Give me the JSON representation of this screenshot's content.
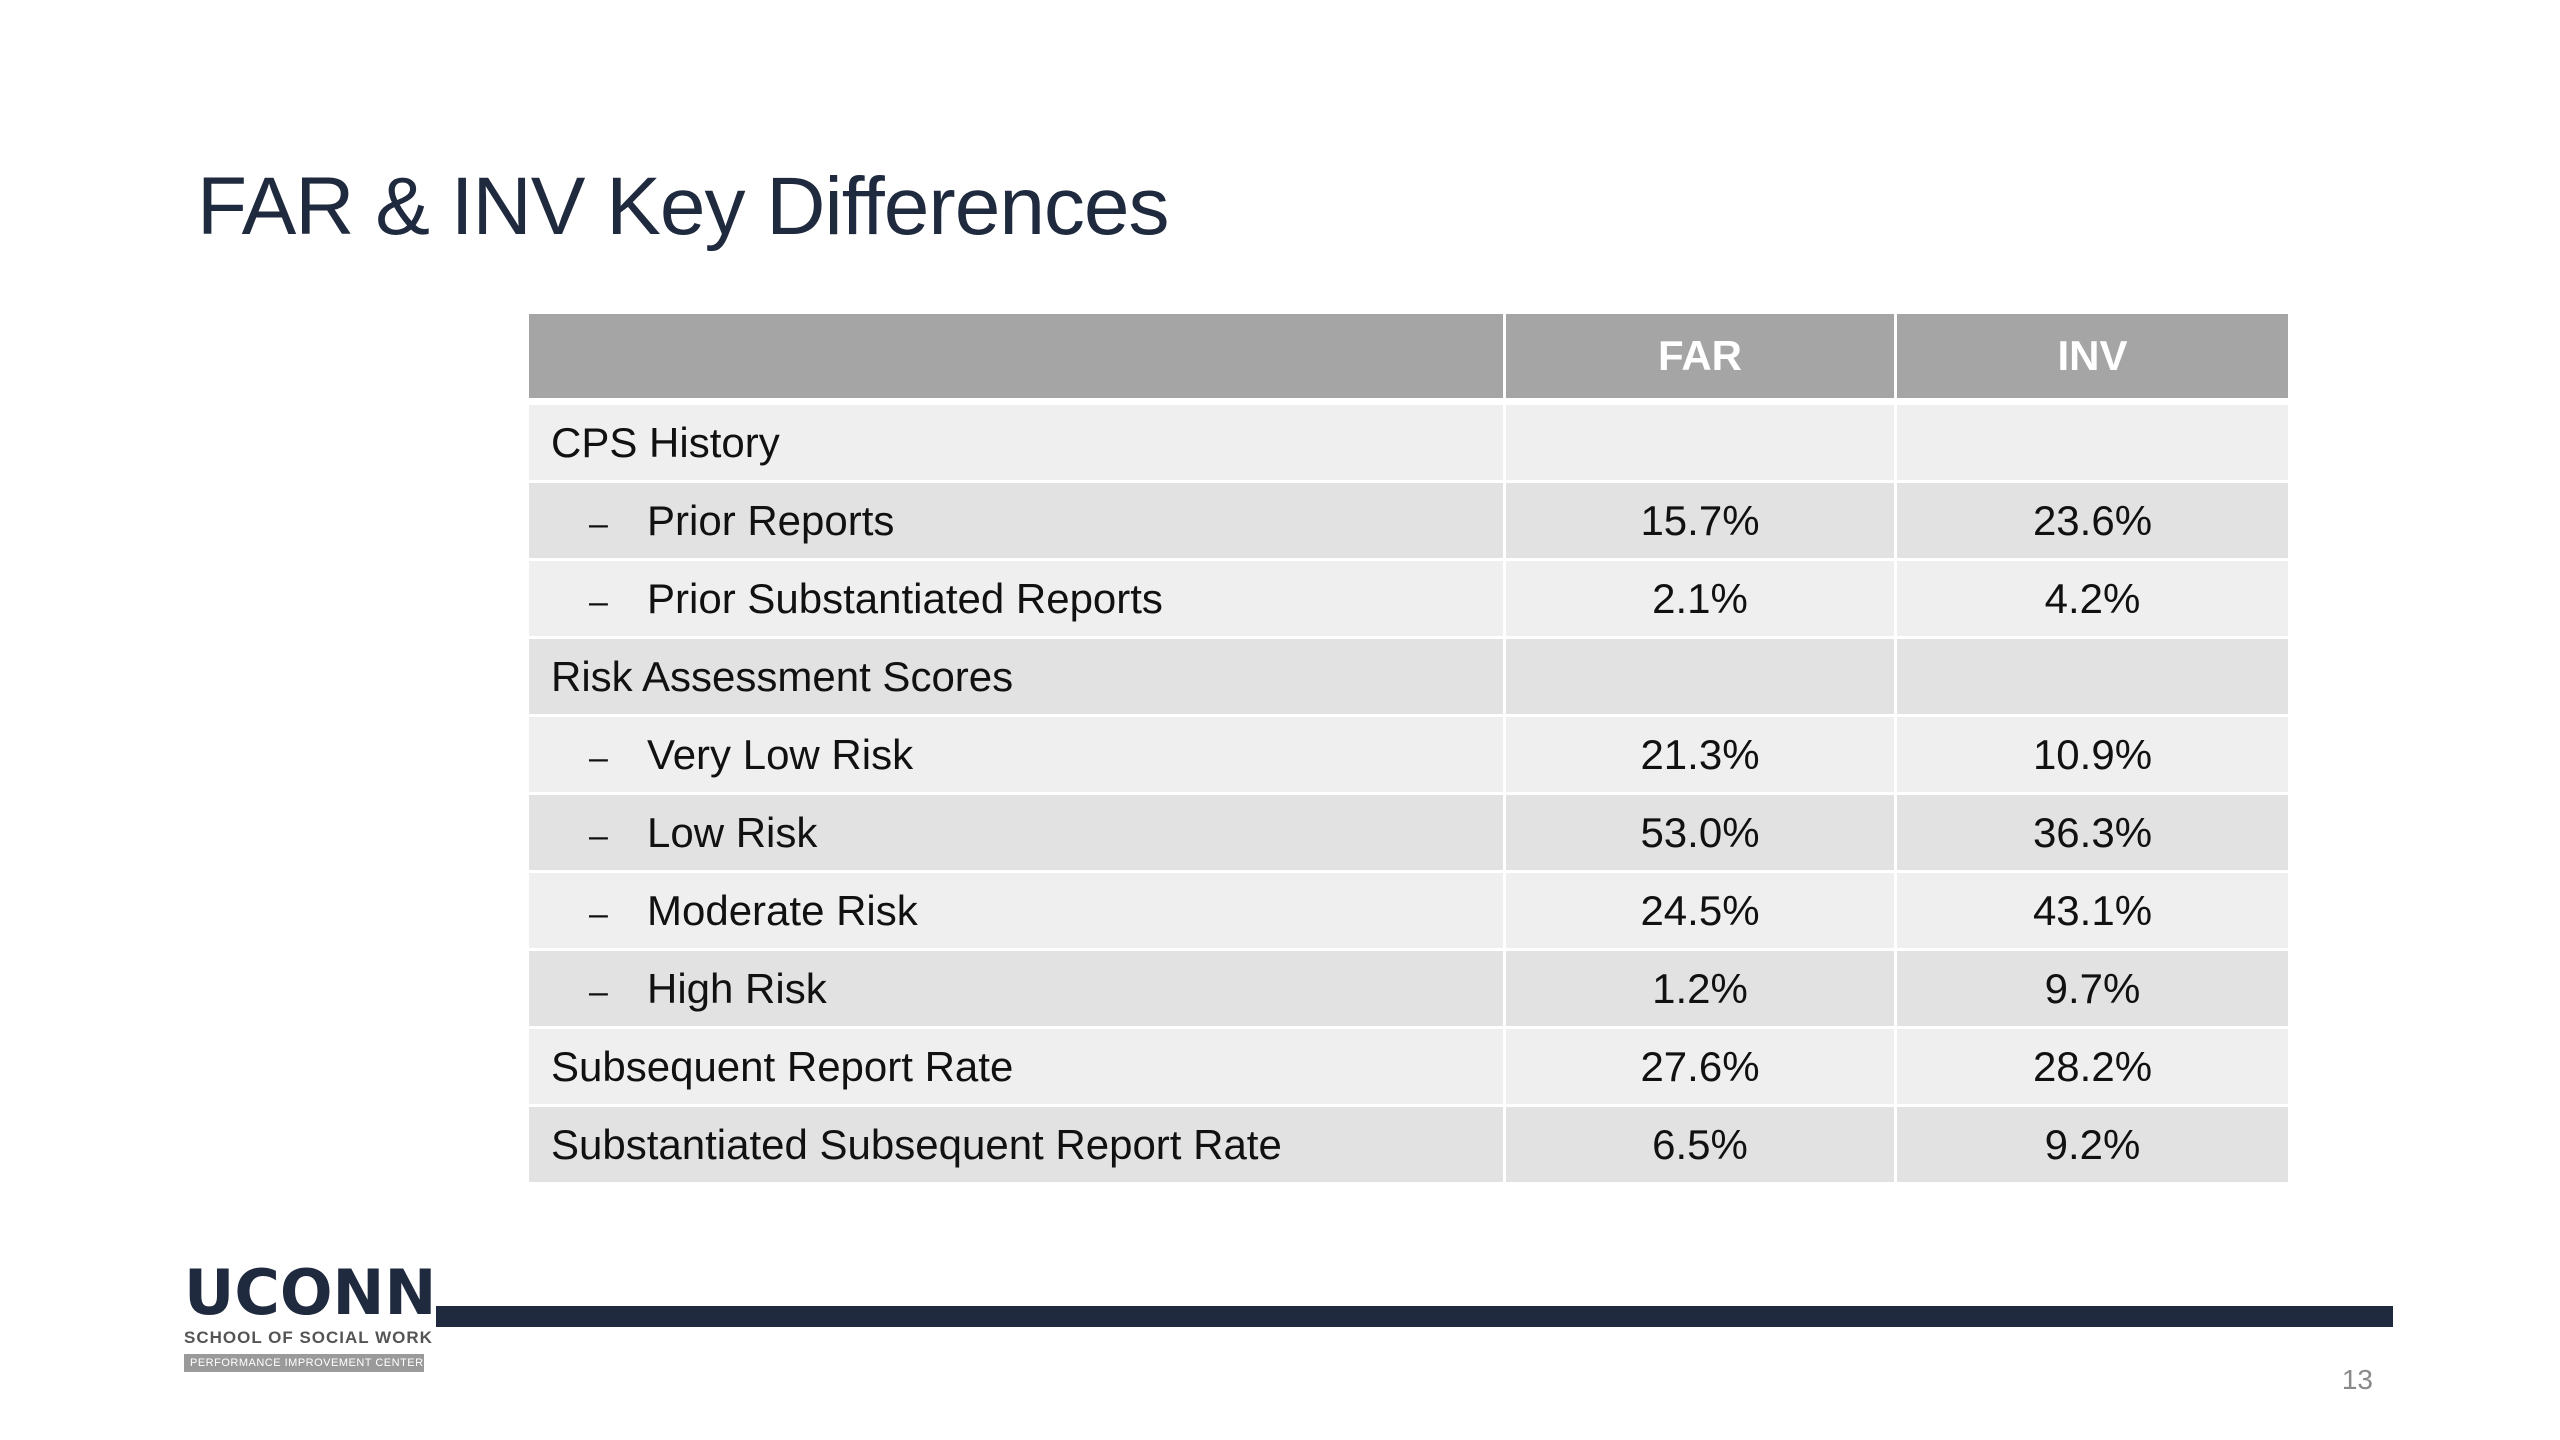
{
  "slide": {
    "title": "FAR & INV Key Differences",
    "page_number": "13"
  },
  "table": {
    "headers": [
      "",
      "FAR",
      "INV"
    ],
    "rows": [
      {
        "label": "CPS History",
        "far": "",
        "inv": "",
        "sub": false
      },
      {
        "label": "Prior Reports",
        "far": "15.7%",
        "inv": "23.6%",
        "sub": true
      },
      {
        "label": "Prior Substantiated Reports",
        "far": "2.1%",
        "inv": "4.2%",
        "sub": true
      },
      {
        "label": "Risk Assessment Scores",
        "far": "",
        "inv": "",
        "sub": false
      },
      {
        "label": "Very Low Risk",
        "far": "21.3%",
        "inv": "10.9%",
        "sub": true
      },
      {
        "label": "Low Risk",
        "far": "53.0%",
        "inv": "36.3%",
        "sub": true
      },
      {
        "label": "Moderate Risk",
        "far": "24.5%",
        "inv": "43.1%",
        "sub": true
      },
      {
        "label": "High Risk",
        "far": "1.2%",
        "inv": "9.7%",
        "sub": true
      },
      {
        "label": "Subsequent Report Rate",
        "far": "27.6%",
        "inv": "28.2%",
        "sub": false
      },
      {
        "label": "Substantiated Subsequent Report Rate",
        "far": "6.5%",
        "inv": "9.2%",
        "sub": false
      }
    ],
    "sub_marker": "–"
  },
  "logo": {
    "main": "UCONN",
    "sub": "SCHOOL OF SOCIAL WORK",
    "bar": "PERFORMANCE IMPROVEMENT CENTER"
  },
  "colors": {
    "title": "#1f2a3f",
    "header_bg": "#a5a5a5",
    "row_dark": "#e2e2e2",
    "row_light": "#efefef",
    "rule": "#1f2a3f"
  }
}
